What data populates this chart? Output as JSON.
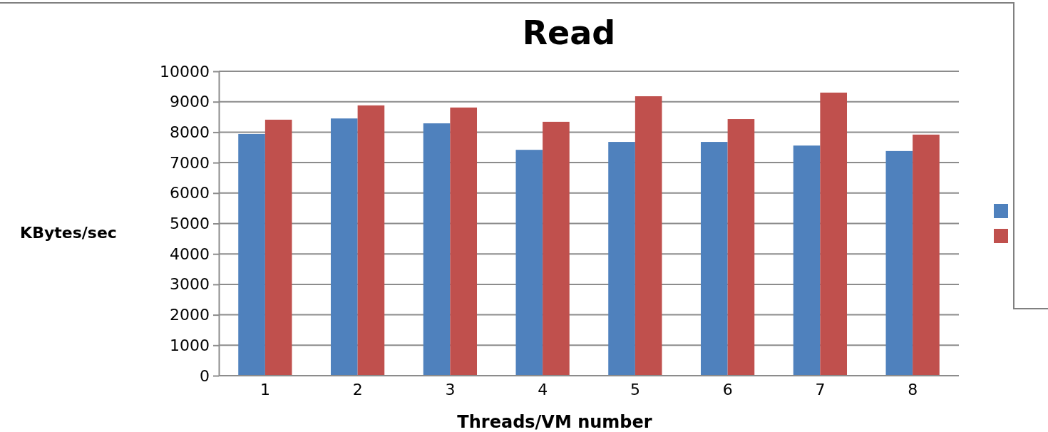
{
  "chart_data": {
    "type": "bar",
    "title": "Read",
    "xlabel": "Threads/VM number",
    "ylabel": "KBytes/sec",
    "categories": [
      "1",
      "2",
      "3",
      "4",
      "5",
      "6",
      "7",
      "8"
    ],
    "series": [
      {
        "color": "#4f81bd",
        "values": [
          7940,
          8450,
          8290,
          7420,
          7680,
          7680,
          7560,
          7380
        ]
      },
      {
        "color": "#c0504d",
        "values": [
          8410,
          8880,
          8810,
          8340,
          9180,
          8430,
          9300,
          7920
        ]
      }
    ],
    "ylim": [
      0,
      10000
    ],
    "yticks": [
      0,
      1000,
      2000,
      3000,
      4000,
      5000,
      6000,
      7000,
      8000,
      9000,
      10000
    ],
    "grid": "y"
  }
}
